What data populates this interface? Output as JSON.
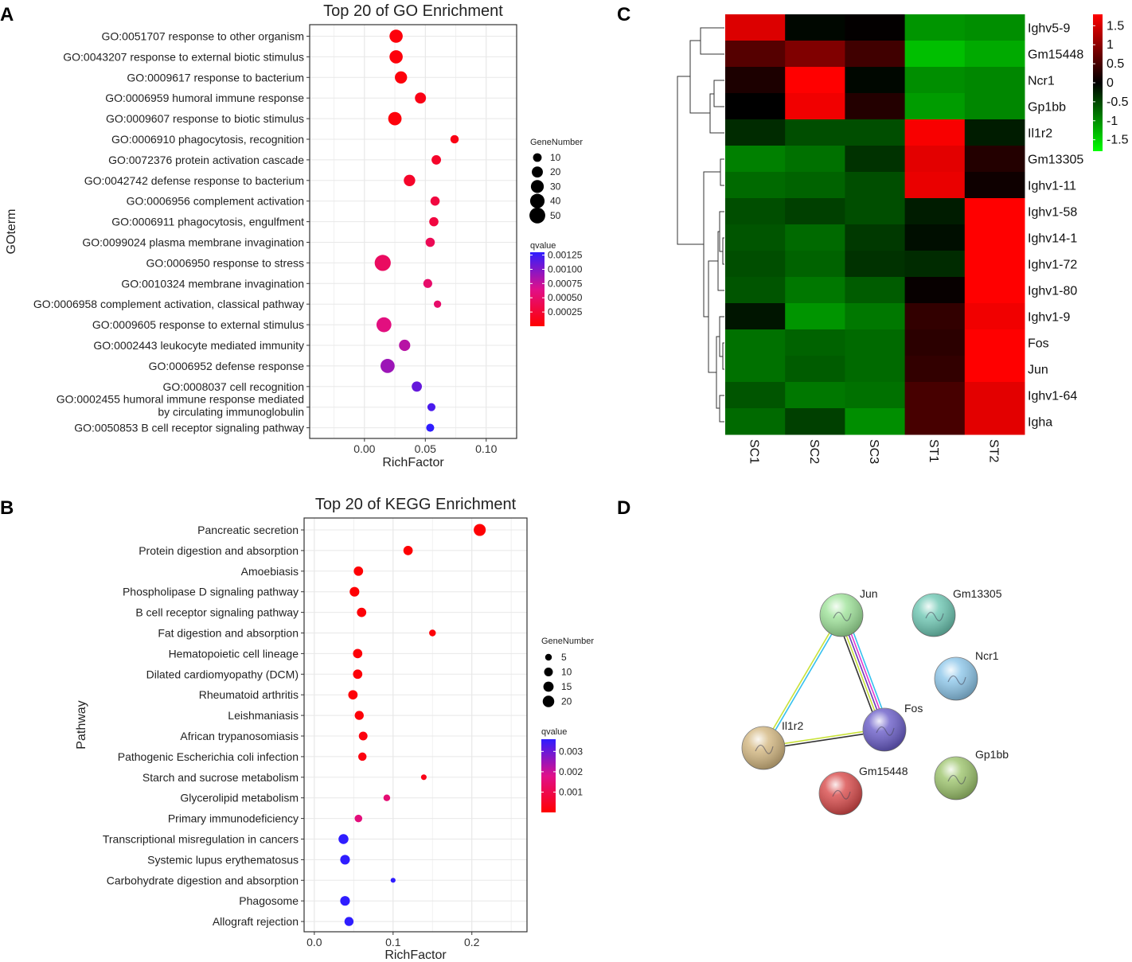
{
  "panels": {
    "A": "A",
    "B": "B",
    "C": "C",
    "D": "D"
  },
  "chart_data": [
    {
      "id": "go",
      "type": "scatter",
      "title": "Top 20 of GO Enrichment",
      "xlabel": "RichFactor",
      "ylabel": "GOterm",
      "xlim": [
        -0.045,
        0.125
      ],
      "xticks": [
        0.0,
        0.05,
        0.1
      ],
      "xtick_labels": [
        "0.00",
        "0.05",
        "0.10"
      ],
      "categories": [
        "GO:0051707 response to other organism",
        "GO:0043207 response to external biotic stimulus",
        "GO:0009617 response to bacterium",
        "GO:0006959 humoral immune response",
        "GO:0009607 response to biotic stimulus",
        "GO:0006910 phagocytosis, recognition",
        "GO:0072376 protein activation cascade",
        "GO:0042742 defense response to bacterium",
        "GO:0006956 complement activation",
        "GO:0006911 phagocytosis, engulfment",
        "GO:0099024 plasma membrane invagination",
        "GO:0006950 response to stress",
        "GO:0010324 membrane invagination",
        "GO:0006958 complement activation, classical pathway",
        "GO:0009605 response to external stimulus",
        "GO:0002443 leukocyte mediated immunity",
        "GO:0006952 defense response",
        "GO:0008037 cell recognition",
        [
          "GO:0002455 humoral immune response mediated",
          "by circulating immunoglobulin"
        ],
        "GO:0050853 B cell receptor signaling pathway"
      ],
      "rich_factor": [
        0.026,
        0.026,
        0.03,
        0.046,
        0.025,
        0.074,
        0.059,
        0.037,
        0.058,
        0.057,
        0.054,
        0.015,
        0.052,
        0.06,
        0.016,
        0.033,
        0.019,
        0.043,
        0.055,
        0.054
      ],
      "gene_number": [
        32,
        32,
        26,
        20,
        33,
        9,
        13,
        22,
        12,
        12,
        12,
        52,
        11,
        6,
        43,
        21,
        38,
        16,
        8,
        8
      ],
      "qvalue": [
        5e-05,
        5e-05,
        5e-05,
        0.0001,
        5e-05,
        0.0001,
        0.0002,
        0.0002,
        0.0003,
        0.0003,
        0.0004,
        0.00045,
        0.0005,
        0.0005,
        0.0006,
        0.0008,
        0.0009,
        0.0011,
        0.0012,
        0.0013
      ],
      "size_legend": {
        "title": "GeneNumber",
        "values": [
          10,
          20,
          30,
          40,
          50
        ],
        "labels": [
          "10",
          "20",
          "30",
          "40",
          "50"
        ]
      },
      "color_legend": {
        "title": "qvalue",
        "min": 0.0,
        "max": 0.0013,
        "ticks": [
          0.00125,
          0.001,
          0.00075,
          0.0005,
          0.00025
        ],
        "labels": [
          "0.00125",
          "0.00100",
          "0.00075",
          "0.00050",
          "0.00025"
        ],
        "low_color": "#ff0000",
        "high_color": "#2f1dff"
      }
    },
    {
      "id": "kegg",
      "type": "scatter",
      "title": "Top 20 of KEGG Enrichment",
      "xlabel": "RichFactor",
      "ylabel": "Pathway",
      "xlim": [
        -0.013,
        0.27
      ],
      "xticks": [
        0.0,
        0.1,
        0.2
      ],
      "xtick_labels": [
        "0.0",
        "0.1",
        "0.2"
      ],
      "categories": [
        "Pancreatic secretion",
        "Protein digestion and absorption",
        "Amoebiasis",
        "Phospholipase D signaling pathway",
        "B cell receptor signaling pathway",
        "Fat digestion and absorption",
        "Hematopoietic cell lineage",
        "Dilated cardiomyopathy (DCM)",
        "Rheumatoid arthritis",
        "Leishmaniasis",
        "African trypanosomiasis",
        "Pathogenic Escherichia coli infection",
        "Starch and sucrose metabolism",
        "Glycerolipid metabolism",
        "Primary immunodeficiency",
        "Transcriptional misregulation in cancers",
        "Systemic lupus erythematosus",
        "Carbohydrate digestion and absorption",
        "Phagosome",
        "Allograft rejection"
      ],
      "rich_factor": [
        0.21,
        0.119,
        0.056,
        0.051,
        0.06,
        0.15,
        0.055,
        0.055,
        0.049,
        0.057,
        0.062,
        0.061,
        0.139,
        0.092,
        0.056,
        0.037,
        0.039,
        0.1,
        0.039,
        0.044
      ],
      "gene_number": [
        22,
        12,
        12,
        13,
        12,
        5,
        12,
        12,
        12,
        11,
        10,
        9,
        3,
        5,
        7,
        14,
        13,
        2,
        13,
        11
      ],
      "qvalue": [
        5e-05,
        5e-05,
        5e-05,
        5e-05,
        0.0001,
        0.0001,
        0.0001,
        0.0001,
        0.0001,
        0.0001,
        0.0002,
        0.0002,
        0.0003,
        0.0015,
        0.0016,
        0.0036,
        0.0036,
        0.0036,
        0.0036,
        0.0036
      ],
      "size_legend": {
        "title": "GeneNumber",
        "values": [
          5,
          10,
          15,
          20
        ],
        "labels": [
          "5",
          "10",
          "15",
          "20"
        ]
      },
      "color_legend": {
        "title": "qvalue",
        "min": 0.0,
        "max": 0.0036,
        "ticks": [
          0.003,
          0.002,
          0.001
        ],
        "labels": [
          "0.003",
          "0.002",
          "0.001"
        ],
        "low_color": "#ff0000",
        "high_color": "#2f1dff"
      }
    },
    {
      "id": "heatmap",
      "type": "heatmap",
      "columns": [
        "SC1",
        "SC2",
        "SC3",
        "ST1",
        "ST2"
      ],
      "rows": [
        "Ighv5-9",
        "Gm15448",
        "Ncr1",
        "Gp1bb",
        "Il1r2",
        "Gm13305",
        "Ighv1-11",
        "Ighv1-58",
        "Ighv14-1",
        "Ighv1-72",
        "Ighv1-80",
        "Ighv1-9",
        "Fos",
        "Jun",
        "Ighv1-64",
        "Igha"
      ],
      "values": [
        [
          1.55,
          -0.05,
          0.02,
          -1.05,
          -1.0
        ],
        [
          0.6,
          0.9,
          0.45,
          -1.35,
          -1.2
        ],
        [
          0.2,
          1.8,
          -0.05,
          -1.0,
          -0.95
        ],
        [
          0.0,
          1.7,
          0.25,
          -1.1,
          -0.95
        ],
        [
          -0.3,
          -0.55,
          -0.55,
          1.75,
          -0.2
        ],
        [
          -0.9,
          -0.8,
          -0.35,
          1.6,
          0.25
        ],
        [
          -0.75,
          -0.7,
          -0.55,
          1.65,
          0.1
        ],
        [
          -0.55,
          -0.45,
          -0.55,
          -0.2,
          1.85
        ],
        [
          -0.6,
          -0.75,
          -0.4,
          -0.1,
          1.9
        ],
        [
          -0.55,
          -0.7,
          -0.35,
          -0.3,
          1.9
        ],
        [
          -0.6,
          -0.85,
          -0.65,
          0.05,
          1.85
        ],
        [
          -0.15,
          -1.05,
          -0.85,
          0.35,
          1.7
        ],
        [
          -0.8,
          -0.7,
          -0.75,
          0.3,
          1.8
        ],
        [
          -0.8,
          -0.65,
          -0.75,
          0.35,
          1.8
        ],
        [
          -0.6,
          -0.85,
          -0.8,
          0.5,
          1.6
        ],
        [
          -0.75,
          -0.45,
          -1.0,
          0.5,
          1.6
        ]
      ],
      "color_range": [
        -1.8,
        1.8
      ],
      "colorbar_ticks": [
        1.5,
        1,
        0.5,
        0,
        -0.5,
        -1,
        -1.5
      ],
      "colorbar_labels": [
        "1.5",
        "1",
        "0.5",
        "0",
        "-0.5",
        "-1",
        "-1.5"
      ],
      "low_color": "#00ff00",
      "mid_color": "#000000",
      "high_color": "#ff0000"
    }
  ],
  "network": {
    "nodes": [
      {
        "id": "Jun",
        "label": "Jun",
        "color": "#9fe39a"
      },
      {
        "id": "Gm13305",
        "label": "Gm13305",
        "color": "#6fc8b4"
      },
      {
        "id": "Ncr1",
        "label": "Ncr1",
        "color": "#8ec7ea"
      },
      {
        "id": "Fos",
        "label": "Fos",
        "color": "#6b5ec9"
      },
      {
        "id": "Il1r2",
        "label": "Il1r2",
        "color": "#d4b882"
      },
      {
        "id": "Gp1bb",
        "label": "Gp1bb",
        "color": "#9ec56e"
      },
      {
        "id": "Gm15448",
        "label": "Gm15448",
        "color": "#d94b4b"
      }
    ],
    "edges": [
      {
        "source": "Jun",
        "target": "Il1r2",
        "colors": [
          "#36c0ee",
          "#c9e23a"
        ]
      },
      {
        "source": "Jun",
        "target": "Fos",
        "colors": [
          "#36c0ee",
          "#e13ad0",
          "#6a3ab8",
          "#c9e23a",
          "#333333"
        ]
      },
      {
        "source": "Il1r2",
        "target": "Fos",
        "colors": [
          "#c9e23a",
          "#333333"
        ]
      }
    ]
  }
}
